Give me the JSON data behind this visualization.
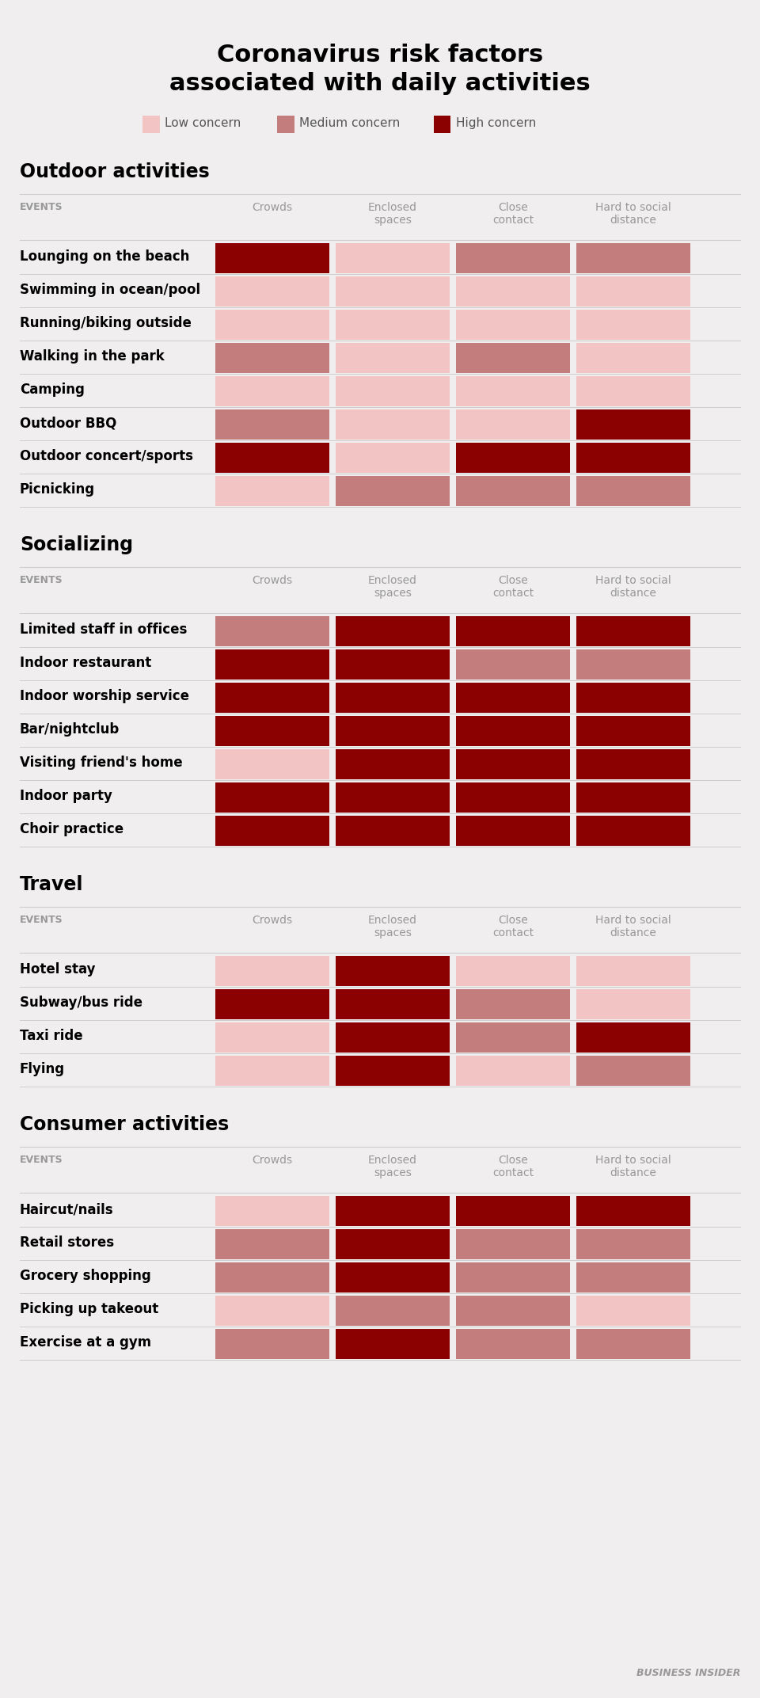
{
  "title": "Coronavirus risk factors\nassociated with daily activities",
  "bg_color": "#f0eeee",
  "colors": {
    "low": "#f2c4c4",
    "medium": "#c47d7d",
    "high": "#8b0000"
  },
  "columns": [
    "Crowds",
    "Enclosed\nspaces",
    "Close\ncontact",
    "Hard to social\ndistance"
  ],
  "sections": [
    {
      "title": "Outdoor activities",
      "rows": [
        {
          "label": "Lounging on the beach",
          "values": [
            3,
            1,
            2,
            2
          ]
        },
        {
          "label": "Swimming in ocean/pool",
          "values": [
            1,
            1,
            1,
            1
          ]
        },
        {
          "label": "Running/biking outside",
          "values": [
            1,
            1,
            1,
            1
          ]
        },
        {
          "label": "Walking in the park",
          "values": [
            2,
            1,
            2,
            1
          ]
        },
        {
          "label": "Camping",
          "values": [
            1,
            1,
            1,
            1
          ]
        },
        {
          "label": "Outdoor BBQ",
          "values": [
            2,
            1,
            1,
            3
          ]
        },
        {
          "label": "Outdoor concert/sports",
          "values": [
            3,
            1,
            3,
            3
          ]
        },
        {
          "label": "Picnicking",
          "values": [
            1,
            2,
            2,
            2
          ]
        }
      ]
    },
    {
      "title": "Socializing",
      "rows": [
        {
          "label": "Limited staff in offices",
          "values": [
            2,
            3,
            3,
            3
          ]
        },
        {
          "label": "Indoor restaurant",
          "values": [
            3,
            3,
            2,
            2
          ]
        },
        {
          "label": "Indoor worship service",
          "values": [
            3,
            3,
            3,
            3
          ]
        },
        {
          "label": "Bar/nightclub",
          "values": [
            3,
            3,
            3,
            3
          ]
        },
        {
          "label": "Visiting friend's home",
          "values": [
            1,
            3,
            3,
            3
          ]
        },
        {
          "label": "Indoor party",
          "values": [
            3,
            3,
            3,
            3
          ]
        },
        {
          "label": "Choir practice",
          "values": [
            3,
            3,
            3,
            3
          ]
        }
      ]
    },
    {
      "title": "Travel",
      "rows": [
        {
          "label": "Hotel stay",
          "values": [
            1,
            3,
            1,
            1
          ]
        },
        {
          "label": "Subway/bus ride",
          "values": [
            3,
            3,
            2,
            1
          ]
        },
        {
          "label": "Taxi ride",
          "values": [
            1,
            3,
            2,
            3
          ]
        },
        {
          "label": "Flying",
          "values": [
            1,
            3,
            1,
            2
          ]
        }
      ]
    },
    {
      "title": "Consumer activities",
      "rows": [
        {
          "label": "Haircut/nails",
          "values": [
            1,
            3,
            3,
            3
          ]
        },
        {
          "label": "Retail stores",
          "values": [
            2,
            3,
            2,
            2
          ]
        },
        {
          "label": "Grocery shopping",
          "values": [
            2,
            3,
            2,
            2
          ]
        },
        {
          "label": "Picking up takeout",
          "values": [
            1,
            2,
            2,
            1
          ]
        },
        {
          "label": "Exercise at a gym",
          "values": [
            2,
            3,
            2,
            2
          ]
        }
      ]
    }
  ]
}
